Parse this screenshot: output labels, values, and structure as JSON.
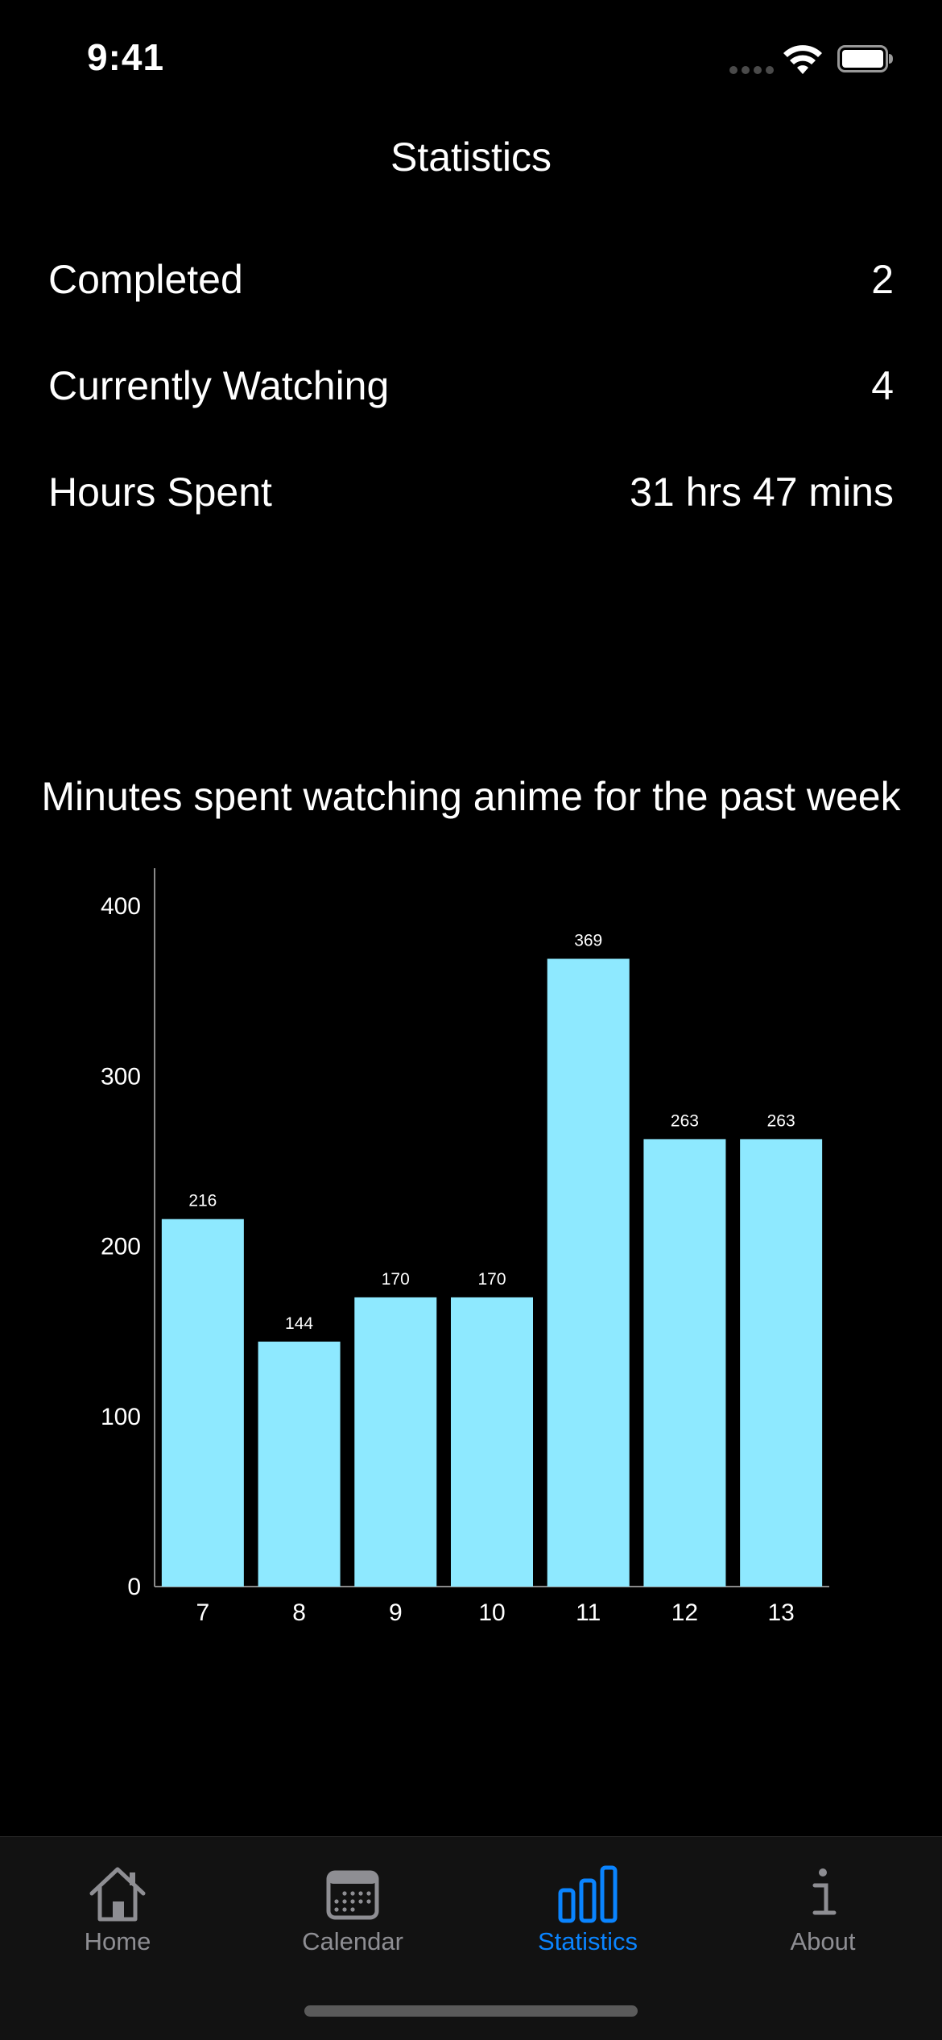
{
  "status_bar": {
    "time": "9:41"
  },
  "header": {
    "title": "Statistics"
  },
  "stats": [
    {
      "label": "Completed",
      "value": "2"
    },
    {
      "label": "Currently Watching",
      "value": "4"
    },
    {
      "label": "Hours Spent",
      "value": "31 hrs 47 mins"
    }
  ],
  "chart_data": {
    "type": "bar",
    "title": "Minutes spent watching anime for the past week",
    "categories": [
      "7",
      "8",
      "9",
      "10",
      "11",
      "12",
      "13"
    ],
    "values": [
      216,
      144,
      170,
      170,
      369,
      263,
      263
    ],
    "data_labels": [
      "216",
      "144",
      "170",
      "170",
      "369",
      "263",
      "263"
    ],
    "yticks": [
      "0",
      "100",
      "200",
      "300",
      "400"
    ],
    "ylim": [
      0,
      400
    ],
    "grid": false,
    "bar_color": "#8ee9ff"
  },
  "tab_bar": {
    "tabs": [
      {
        "label": "Home",
        "icon": "house-icon",
        "active": false
      },
      {
        "label": "Calendar",
        "icon": "calendar-icon",
        "active": false
      },
      {
        "label": "Statistics",
        "icon": "bar-chart-icon",
        "active": true
      },
      {
        "label": "About",
        "icon": "info-icon",
        "active": false
      }
    ],
    "active_color": "#0a84ff",
    "inactive_color": "#8e8e93"
  }
}
